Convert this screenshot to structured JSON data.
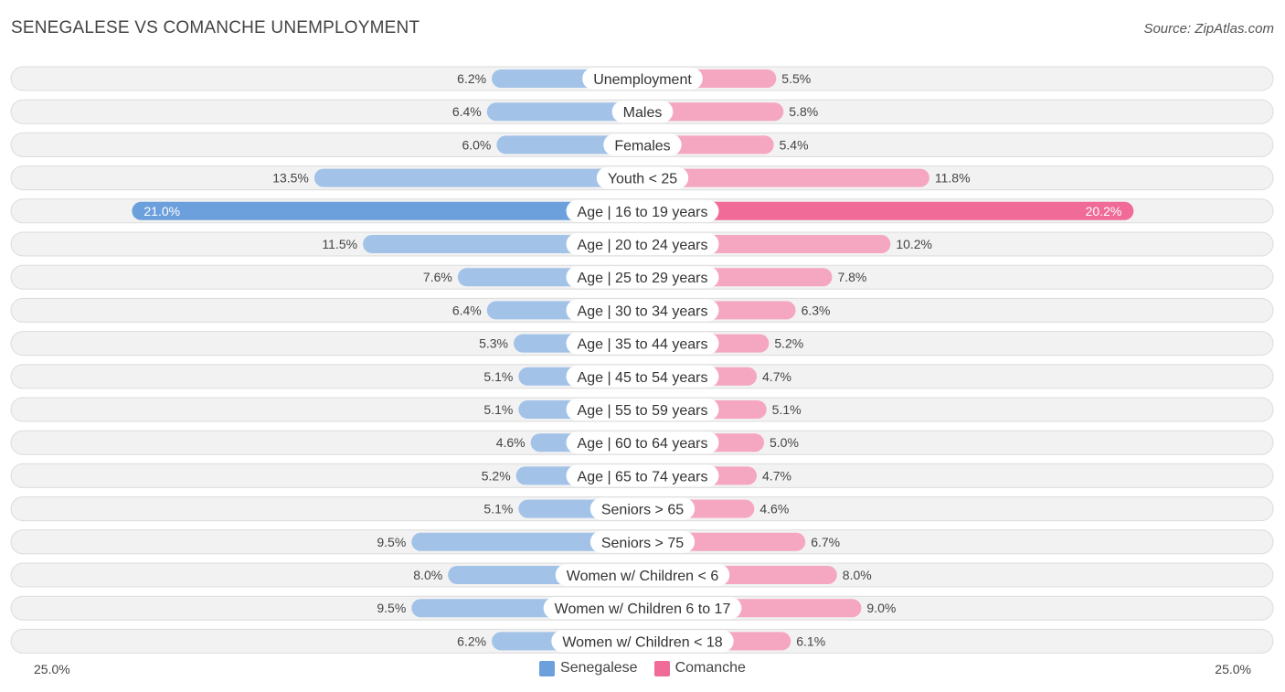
{
  "header": {
    "title": "SENEGALESE VS COMANCHE UNEMPLOYMENT",
    "source": "Source: ZipAtlas.com"
  },
  "colors": {
    "senegalese": "#a3c2e8",
    "senegalese_highlight": "#6ba0dd",
    "comanche": "#f5a6c0",
    "comanche_highlight": "#f06b97",
    "legend_senegalese": "#6ba0dd",
    "legend_comanche": "#f06b97"
  },
  "axis": {
    "left_label": "25.0%",
    "right_label": "25.0%"
  },
  "legend": {
    "senegalese": "Senegalese",
    "comanche": "Comanche"
  },
  "chart_data": {
    "type": "bar",
    "orientation": "diverging-horizontal",
    "title": "SENEGALESE VS COMANCHE UNEMPLOYMENT",
    "xlim": [
      0,
      25.0
    ],
    "highlight_index": 4,
    "categories": [
      "Unemployment",
      "Males",
      "Females",
      "Youth < 25",
      "Age | 16 to 19 years",
      "Age | 20 to 24 years",
      "Age | 25 to 29 years",
      "Age | 30 to 34 years",
      "Age | 35 to 44 years",
      "Age | 45 to 54 years",
      "Age | 55 to 59 years",
      "Age | 60 to 64 years",
      "Age | 65 to 74 years",
      "Seniors > 65",
      "Seniors > 75",
      "Women w/ Children < 6",
      "Women w/ Children 6 to 17",
      "Women w/ Children < 18"
    ],
    "series": [
      {
        "name": "Senegalese",
        "values": [
          6.2,
          6.4,
          6.0,
          13.5,
          21.0,
          11.5,
          7.6,
          6.4,
          5.3,
          5.1,
          5.1,
          4.6,
          5.2,
          5.1,
          9.5,
          8.0,
          9.5,
          6.2
        ],
        "labels": [
          "6.2%",
          "6.4%",
          "6.0%",
          "13.5%",
          "21.0%",
          "11.5%",
          "7.6%",
          "6.4%",
          "5.3%",
          "5.1%",
          "5.1%",
          "4.6%",
          "5.2%",
          "5.1%",
          "9.5%",
          "8.0%",
          "9.5%",
          "6.2%"
        ]
      },
      {
        "name": "Comanche",
        "values": [
          5.5,
          5.8,
          5.4,
          11.8,
          20.2,
          10.2,
          7.8,
          6.3,
          5.2,
          4.7,
          5.1,
          5.0,
          4.7,
          4.6,
          6.7,
          8.0,
          9.0,
          6.1
        ],
        "labels": [
          "5.5%",
          "5.8%",
          "5.4%",
          "11.8%",
          "20.2%",
          "10.2%",
          "7.8%",
          "6.3%",
          "5.2%",
          "4.7%",
          "5.1%",
          "5.0%",
          "4.7%",
          "4.6%",
          "6.7%",
          "8.0%",
          "9.0%",
          "6.1%"
        ]
      }
    ]
  }
}
